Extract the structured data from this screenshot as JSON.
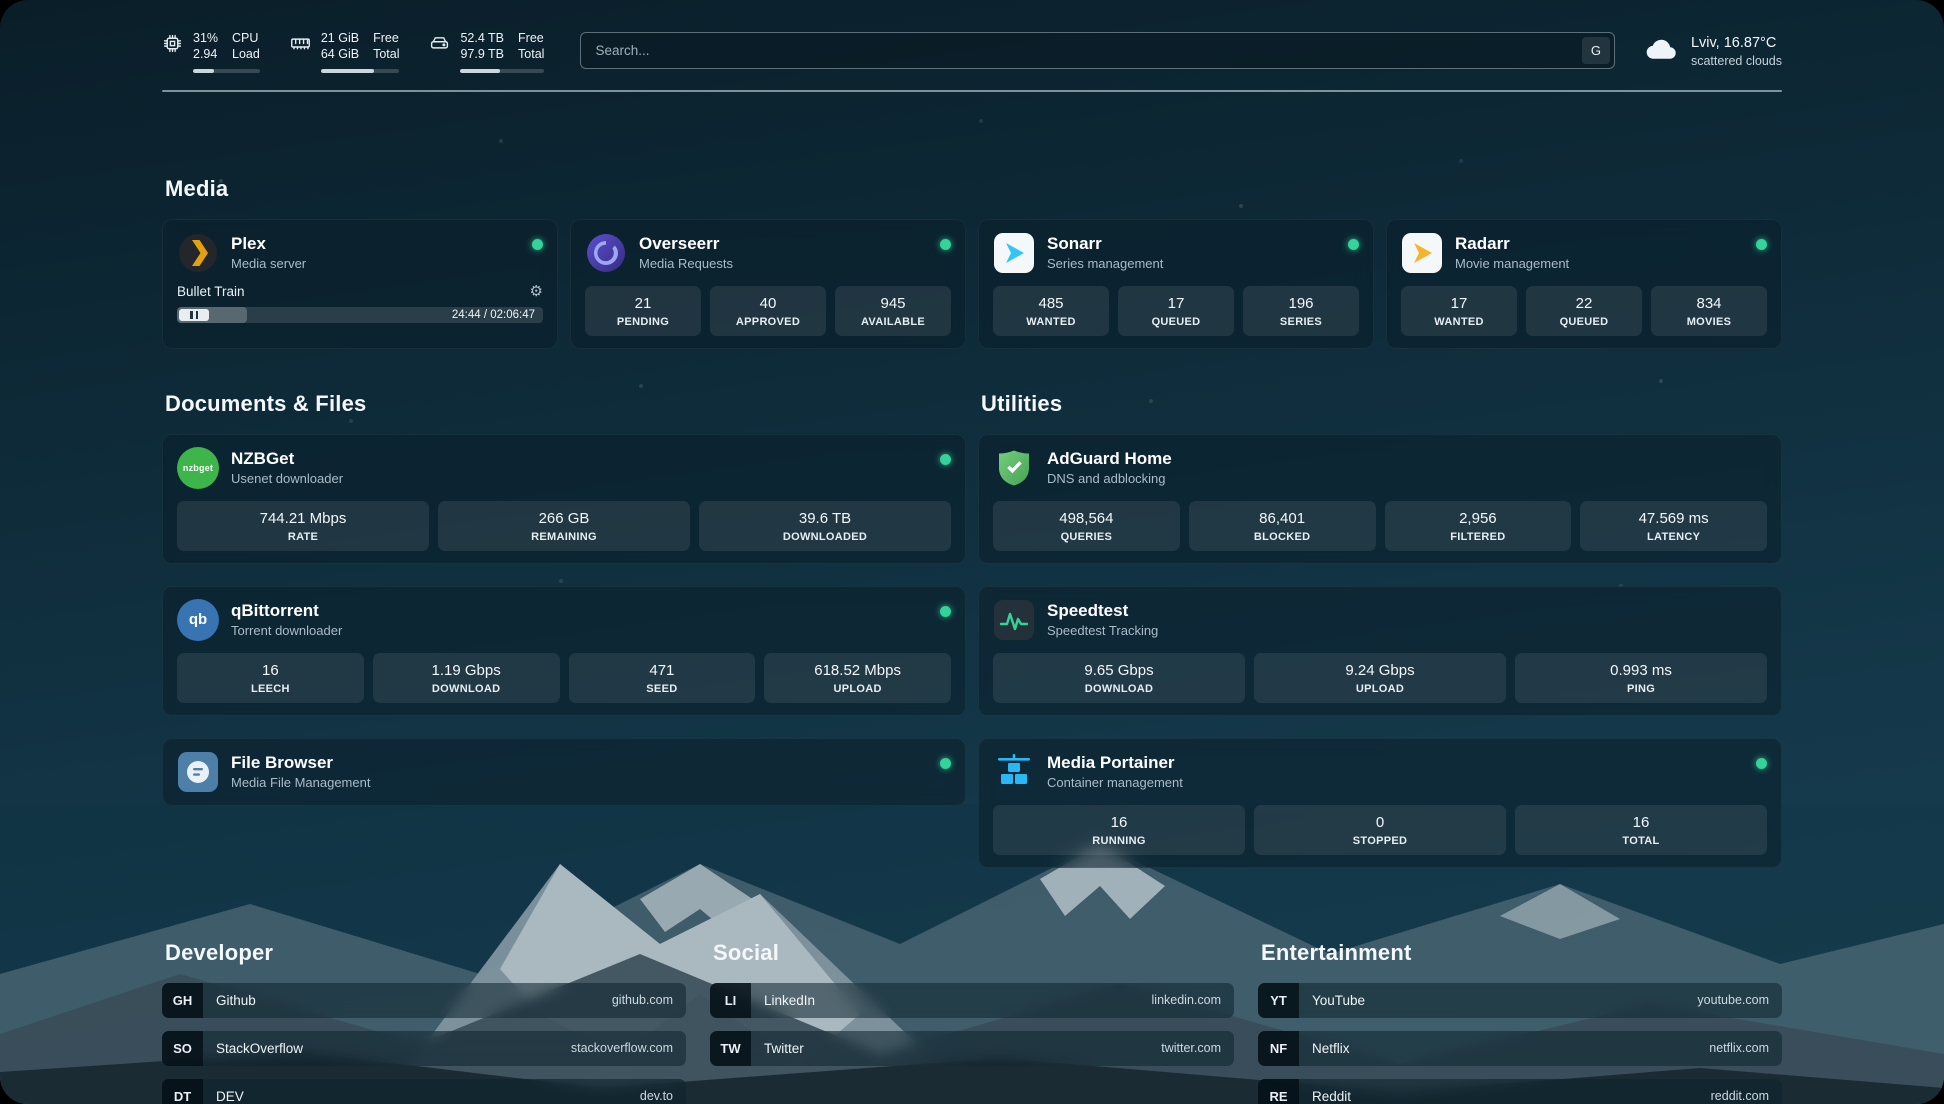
{
  "topbar": {
    "cpu": {
      "percent": "31%",
      "load": "2.94",
      "label_top": "CPU",
      "label_bottom": "Load",
      "progress": 31
    },
    "memory": {
      "value_top": "21 GiB",
      "value_bottom": "64 GiB",
      "label_top": "Free",
      "label_bottom": "Total",
      "progress": 67
    },
    "disk": {
      "value_top": "52.4 TB",
      "value_bottom": "97.9 TB",
      "label_top": "Free",
      "label_bottom": "Total",
      "progress": 47
    },
    "search": {
      "placeholder": "Search...",
      "engine_label": "G"
    },
    "weather": {
      "location": "Lviv, 16.87°C",
      "condition": "scattered clouds"
    }
  },
  "media": {
    "title": "Media",
    "plex": {
      "name": "Plex",
      "description": "Media server",
      "now_playing": "Bullet Train",
      "time": "24:44 / 02:06:47",
      "progress_percent": 19
    },
    "overseerr": {
      "name": "Overseerr",
      "description": "Media Requests",
      "stats": [
        {
          "value": "21",
          "label": "PENDING"
        },
        {
          "value": "40",
          "label": "APPROVED"
        },
        {
          "value": "945",
          "label": "AVAILABLE"
        }
      ]
    },
    "sonarr": {
      "name": "Sonarr",
      "description": "Series management",
      "stats": [
        {
          "value": "485",
          "label": "WANTED"
        },
        {
          "value": "17",
          "label": "QUEUED"
        },
        {
          "value": "196",
          "label": "SERIES"
        }
      ]
    },
    "radarr": {
      "name": "Radarr",
      "description": "Movie management",
      "stats": [
        {
          "value": "17",
          "label": "WANTED"
        },
        {
          "value": "22",
          "label": "QUEUED"
        },
        {
          "value": "834",
          "label": "MOVIES"
        }
      ]
    }
  },
  "documents": {
    "title": "Documents & Files",
    "nzbget": {
      "name": "NZBGet",
      "description": "Usenet downloader",
      "stats": [
        {
          "value": "744.21 Mbps",
          "label": "RATE"
        },
        {
          "value": "266 GB",
          "label": "REMAINING"
        },
        {
          "value": "39.6 TB",
          "label": "DOWNLOADED"
        }
      ]
    },
    "qbittorrent": {
      "name": "qBittorrent",
      "description": "Torrent downloader",
      "stats": [
        {
          "value": "16",
          "label": "LEECH"
        },
        {
          "value": "1.19 Gbps",
          "label": "DOWNLOAD"
        },
        {
          "value": "471",
          "label": "SEED"
        },
        {
          "value": "618.52 Mbps",
          "label": "UPLOAD"
        }
      ]
    },
    "filebrowser": {
      "name": "File Browser",
      "description": "Media File Management"
    }
  },
  "utilities": {
    "title": "Utilities",
    "adguard": {
      "name": "AdGuard Home",
      "description": "DNS and adblocking",
      "stats": [
        {
          "value": "498,564",
          "label": "QUERIES"
        },
        {
          "value": "86,401",
          "label": "BLOCKED"
        },
        {
          "value": "2,956",
          "label": "FILTERED"
        },
        {
          "value": "47.569 ms",
          "label": "LATENCY"
        }
      ]
    },
    "speedtest": {
      "name": "Speedtest",
      "description": "Speedtest Tracking",
      "stats": [
        {
          "value": "9.65 Gbps",
          "label": "DOWNLOAD"
        },
        {
          "value": "9.24 Gbps",
          "label": "UPLOAD"
        },
        {
          "value": "0.993 ms",
          "label": "PING"
        }
      ]
    },
    "portainer": {
      "name": "Media Portainer",
      "description": "Container management",
      "stats": [
        {
          "value": "16",
          "label": "RUNNING"
        },
        {
          "value": "0",
          "label": "STOPPED"
        },
        {
          "value": "16",
          "label": "TOTAL"
        }
      ]
    }
  },
  "bookmarks": {
    "developer": {
      "title": "Developer",
      "items": [
        {
          "abbr": "GH",
          "name": "Github",
          "url": "github.com"
        },
        {
          "abbr": "SO",
          "name": "StackOverflow",
          "url": "stackoverflow.com"
        },
        {
          "abbr": "DT",
          "name": "DEV",
          "url": "dev.to"
        }
      ]
    },
    "social": {
      "title": "Social",
      "items": [
        {
          "abbr": "LI",
          "name": "LinkedIn",
          "url": "linkedin.com"
        },
        {
          "abbr": "TW",
          "name": "Twitter",
          "url": "twitter.com"
        }
      ]
    },
    "entertainment": {
      "title": "Entertainment",
      "items": [
        {
          "abbr": "YT",
          "name": "YouTube",
          "url": "youtube.com"
        },
        {
          "abbr": "NF",
          "name": "Netflix",
          "url": "netflix.com"
        },
        {
          "abbr": "RE",
          "name": "Reddit",
          "url": "reddit.com"
        }
      ]
    }
  },
  "icons": {
    "nzbget_label": "nzbget",
    "qbittorrent_label": "qb"
  },
  "colors": {
    "status_online": "#34d399",
    "plex_accent": "#e5a00d",
    "overseerr_accent": "#5a4fd0",
    "sonarr_accent": "#35c5f4",
    "radarr_accent": "#f5b42c",
    "nzbget_accent": "#3db54a",
    "qbittorrent_accent": "#3873b3",
    "filebrowser_accent": "#4d7fa8",
    "adguard_accent": "#5fbf6b",
    "speedtest_accent": "#36d399",
    "portainer_accent": "#29b8f5",
    "progress_fill": "#cbd7dd"
  }
}
